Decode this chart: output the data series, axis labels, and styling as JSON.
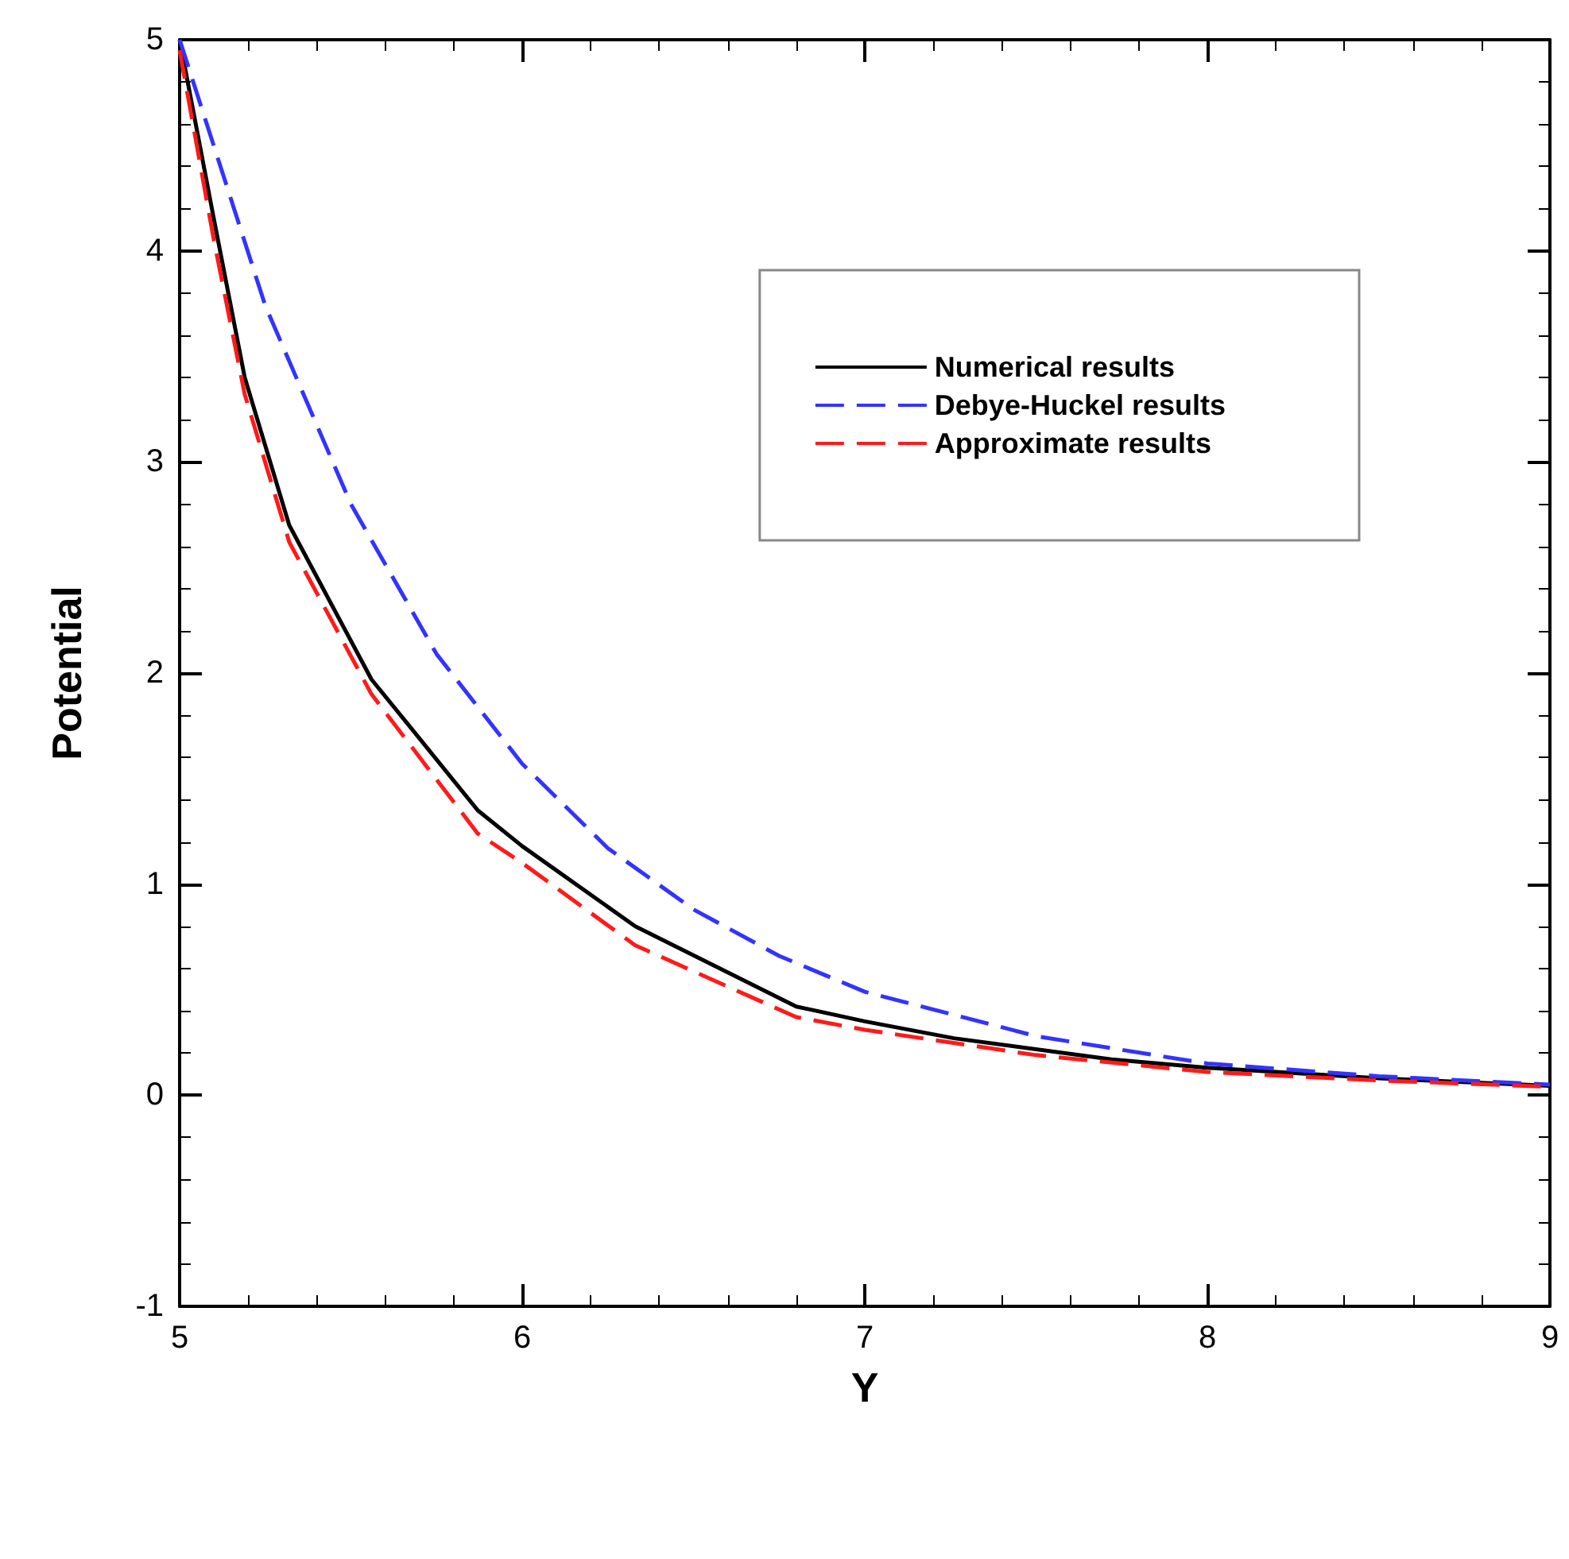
{
  "chart_data": {
    "type": "line",
    "xlabel": "Y",
    "ylabel": "Potential",
    "xlim": [
      5,
      9
    ],
    "xticks": [
      5,
      6,
      7,
      8,
      9
    ],
    "ylim": [
      -1,
      5
    ],
    "yticks": [
      -1,
      0,
      1,
      2,
      3,
      4,
      5
    ],
    "grid": false,
    "legend": "top right",
    "marker": "none",
    "series": [
      {
        "name": "Numerical results",
        "color": "#000000",
        "line_style": "solid",
        "x": [
          5,
          5.1,
          5.19,
          5.32,
          5.56,
          5.87,
          6,
          6.33,
          6.8,
          7,
          7.26,
          7.72,
          8,
          8.5,
          9
        ],
        "values": [
          5,
          4.15,
          3.4,
          2.7,
          1.97,
          1.35,
          1.18,
          0.8,
          0.42,
          0.35,
          0.27,
          0.17,
          0.13,
          0.08,
          0.045
        ]
      },
      {
        "name": "Debye-Huckel results",
        "color": "#3333ff",
        "line_style": "dashed",
        "x": [
          5,
          5.25,
          5.5,
          5.75,
          6,
          6.25,
          6.5,
          6.75,
          7,
          7.5,
          8,
          8.5,
          9
        ],
        "values": [
          5,
          3.74,
          2.8,
          2.09,
          1.57,
          1.17,
          0.88,
          0.66,
          0.49,
          0.28,
          0.15,
          0.09,
          0.05
        ]
      },
      {
        "name": "Approximate results",
        "color": "#ff1a1a",
        "line_style": "dashed",
        "x": [
          5,
          5.1,
          5.19,
          5.32,
          5.56,
          5.87,
          6,
          6.33,
          6.8,
          7,
          7.5,
          8,
          8.5,
          9
        ],
        "values": [
          4.95,
          4.05,
          3.32,
          2.62,
          1.9,
          1.24,
          1.1,
          0.71,
          0.37,
          0.31,
          0.19,
          0.11,
          0.07,
          0.04
        ]
      }
    ]
  }
}
